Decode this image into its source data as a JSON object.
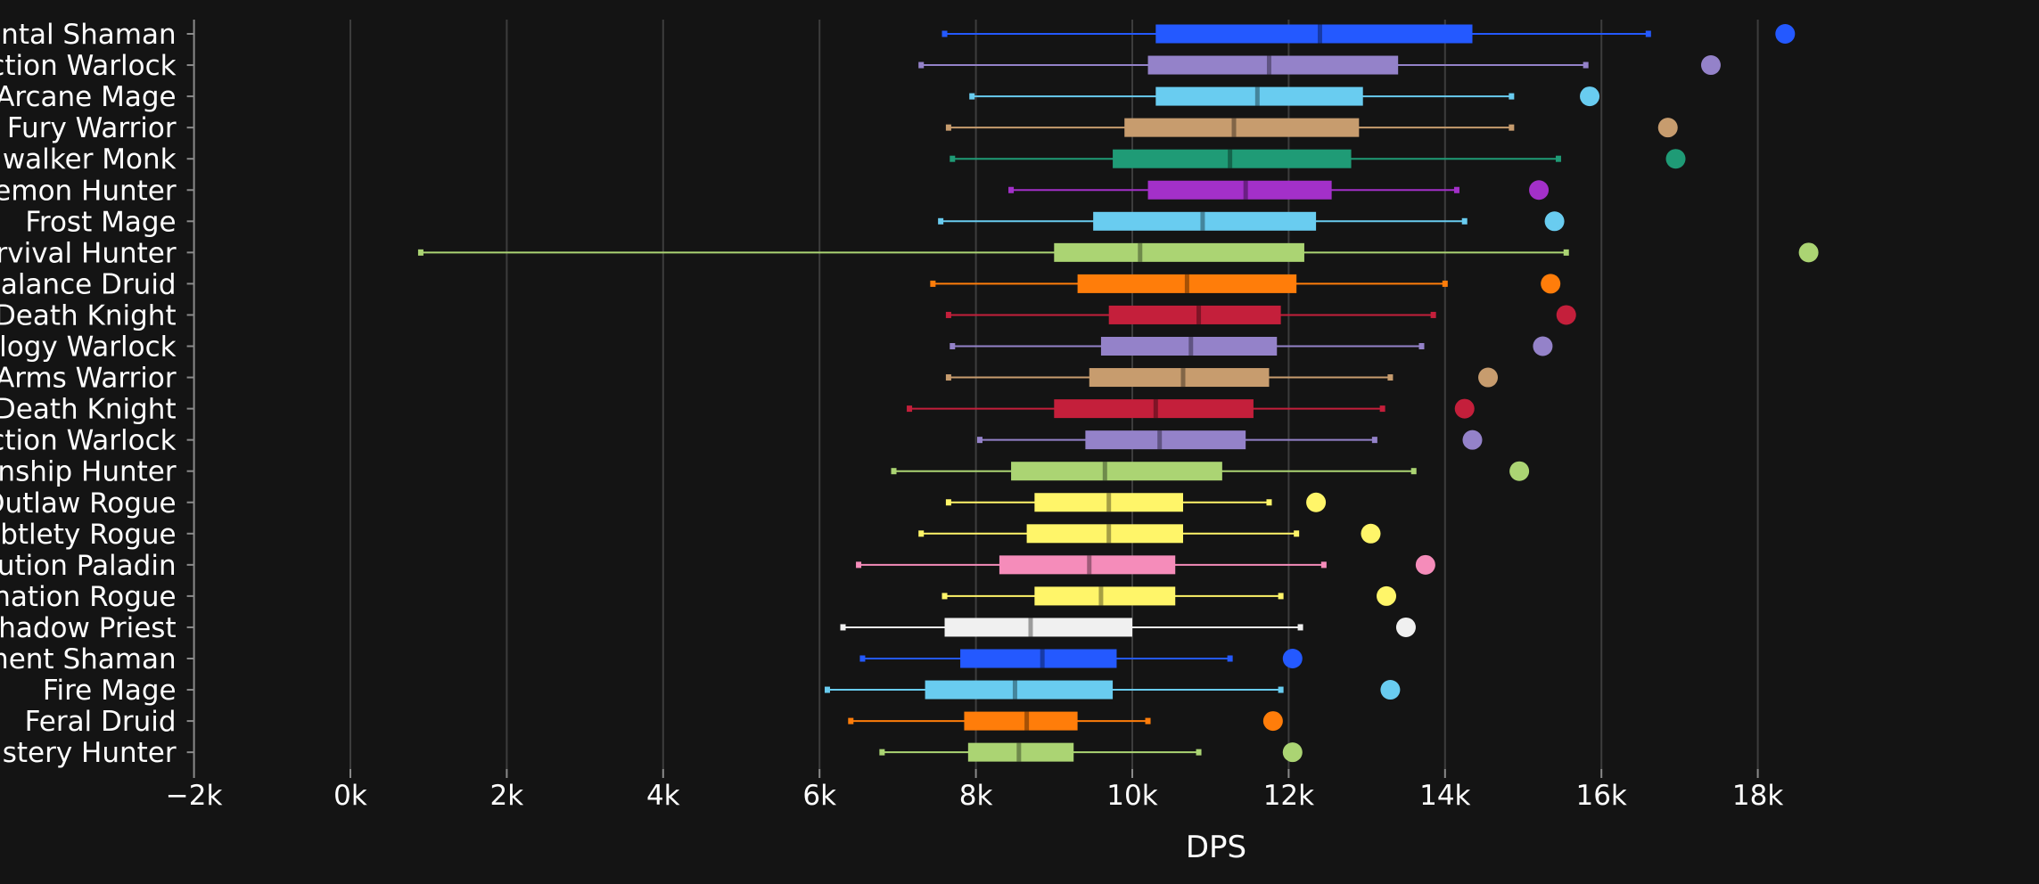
{
  "chart_data": {
    "type": "box",
    "orientation": "horizontal",
    "xlabel": "DPS",
    "xlim": [
      -2000,
      20000
    ],
    "xticks": [
      -2000,
      0,
      2000,
      4000,
      6000,
      8000,
      10000,
      12000,
      14000,
      16000,
      18000
    ],
    "xtick_labels": [
      "−2k",
      "0k",
      "2k",
      "4k",
      "6k",
      "8k",
      "10k",
      "12k",
      "14k",
      "16k",
      "18k"
    ],
    "grid": true,
    "series": [
      {
        "name": "Elemental Shaman",
        "color": "#2459ff",
        "min": 7600,
        "q1": 10300,
        "median": 12400,
        "q3": 14350,
        "max": 16600,
        "outlier": 18350
      },
      {
        "name": "Affliction Warlock",
        "color": "#9482c9",
        "min": 7300,
        "q1": 10200,
        "median": 11750,
        "q3": 13400,
        "max": 15800,
        "outlier": 17400
      },
      {
        "name": "Arcane Mage",
        "color": "#69ccf0",
        "min": 7950,
        "q1": 10300,
        "median": 11600,
        "q3": 12950,
        "max": 14850,
        "outlier": 15850
      },
      {
        "name": "Fury Warrior",
        "color": "#c79c6e",
        "min": 7650,
        "q1": 9900,
        "median": 11300,
        "q3": 12900,
        "max": 14850,
        "outlier": 16850
      },
      {
        "name": "Windwalker Monk",
        "color": "#1f9b76",
        "min": 7700,
        "q1": 9750,
        "median": 11250,
        "q3": 12800,
        "max": 15450,
        "outlier": 16950
      },
      {
        "name": "Havoc Demon Hunter",
        "color": "#a330c9",
        "min": 8450,
        "q1": 10200,
        "median": 11450,
        "q3": 12550,
        "max": 14150,
        "outlier": 15200
      },
      {
        "name": "Frost Mage",
        "color": "#69ccf0",
        "min": 7550,
        "q1": 9500,
        "median": 10900,
        "q3": 12350,
        "max": 14250,
        "outlier": 15400
      },
      {
        "name": "Survival Hunter",
        "color": "#abd473",
        "min": 900,
        "q1": 9000,
        "median": 10100,
        "q3": 12200,
        "max": 15550,
        "outlier": 18650
      },
      {
        "name": "Balance Druid",
        "color": "#ff7d0a",
        "min": 7450,
        "q1": 9300,
        "median": 10700,
        "q3": 12100,
        "max": 14000,
        "outlier": 15350
      },
      {
        "name": "Frost Death Knight",
        "color": "#c41f3b",
        "min": 7650,
        "q1": 9700,
        "median": 10850,
        "q3": 11900,
        "max": 13850,
        "outlier": 15550
      },
      {
        "name": "Demonology Warlock",
        "color": "#9482c9",
        "min": 7700,
        "q1": 9600,
        "median": 10750,
        "q3": 11850,
        "max": 13700,
        "outlier": 15250
      },
      {
        "name": "Arms Warrior",
        "color": "#c79c6e",
        "min": 7650,
        "q1": 9450,
        "median": 10650,
        "q3": 11750,
        "max": 13300,
        "outlier": 14550
      },
      {
        "name": "Unholy Death Knight",
        "color": "#c41f3b",
        "min": 7150,
        "q1": 9000,
        "median": 10300,
        "q3": 11550,
        "max": 13200,
        "outlier": 14250
      },
      {
        "name": "Destruction Warlock",
        "color": "#9482c9",
        "min": 8050,
        "q1": 9400,
        "median": 10350,
        "q3": 11450,
        "max": 13100,
        "outlier": 14350
      },
      {
        "name": "Marksmanship Hunter",
        "color": "#abd473",
        "min": 6950,
        "q1": 8450,
        "median": 9650,
        "q3": 11150,
        "max": 13600,
        "outlier": 14950
      },
      {
        "name": "Outlaw Rogue",
        "color": "#fff569",
        "min": 7650,
        "q1": 8750,
        "median": 9700,
        "q3": 10650,
        "max": 11750,
        "outlier": 12350
      },
      {
        "name": "Subtlety Rogue",
        "color": "#fff569",
        "min": 7300,
        "q1": 8650,
        "median": 9700,
        "q3": 10650,
        "max": 12100,
        "outlier": 13050
      },
      {
        "name": "Retribution Paladin",
        "color": "#f58cba",
        "min": 6500,
        "q1": 8300,
        "median": 9450,
        "q3": 10550,
        "max": 12450,
        "outlier": 13750
      },
      {
        "name": "Assassination Rogue",
        "color": "#fff569",
        "min": 7600,
        "q1": 8750,
        "median": 9600,
        "q3": 10550,
        "max": 11900,
        "outlier": 13250
      },
      {
        "name": "Shadow Priest",
        "color": "#f0f0f0",
        "min": 6300,
        "q1": 7600,
        "median": 8700,
        "q3": 10000,
        "max": 12150,
        "outlier": 13500
      },
      {
        "name": "Enhancement Shaman",
        "color": "#2459ff",
        "min": 6550,
        "q1": 7800,
        "median": 8850,
        "q3": 9800,
        "max": 11250,
        "outlier": 12050
      },
      {
        "name": "Fire Mage",
        "color": "#69ccf0",
        "min": 6100,
        "q1": 7350,
        "median": 8500,
        "q3": 9750,
        "max": 11900,
        "outlier": 13300
      },
      {
        "name": "Feral Druid",
        "color": "#ff7d0a",
        "min": 6400,
        "q1": 7850,
        "median": 8650,
        "q3": 9300,
        "max": 10200,
        "outlier": 11800
      },
      {
        "name": "Beast Mastery Hunter",
        "color": "#abd473",
        "min": 6800,
        "q1": 7900,
        "median": 8550,
        "q3": 9250,
        "max": 10850,
        "outlier": 12050
      }
    ]
  },
  "colors": {
    "background": "#141414",
    "grid": "#3c3c3c",
    "text": "#ffffff",
    "axis": "#8a8a8a"
  }
}
